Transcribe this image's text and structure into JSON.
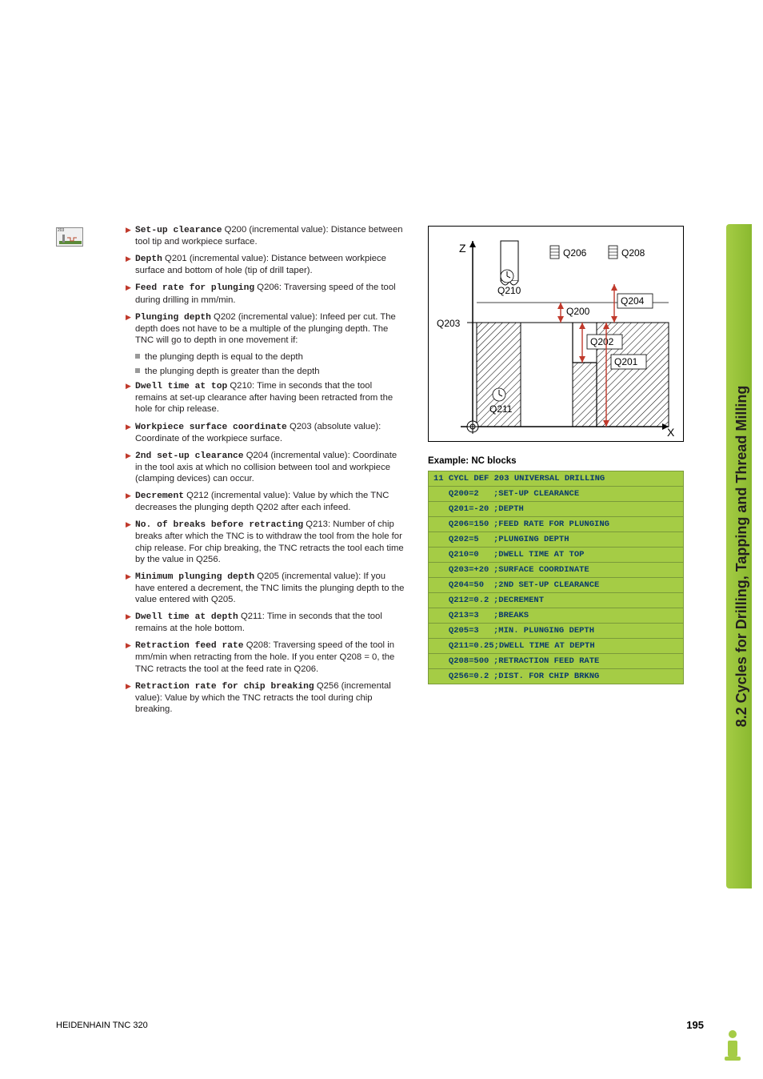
{
  "sideTab": "8.2 Cycles for Drilling, Tapping and Thread Milling",
  "iconNum": "203",
  "params": [
    {
      "label": "Set-up clearance",
      "text": " Q200 (incremental value): Distance between tool tip and workpiece surface."
    },
    {
      "label": "Depth",
      "text": " Q201 (incremental value): Distance between workpiece surface and bottom of hole (tip of drill taper)."
    },
    {
      "label": "Feed rate for plunging",
      "text": " Q206: Traversing speed of the tool during drilling in mm/min."
    },
    {
      "label": "Plunging depth",
      "text": " Q202 (incremental value): Infeed per cut. The depth does not have to be a multiple of the plunging depth. The TNC will go to depth in one movement if:"
    }
  ],
  "subs": [
    "the plunging depth is equal to the depth",
    "the plunging depth is greater than the depth"
  ],
  "params2": [
    {
      "label": "Dwell time at top",
      "text": " Q210: Time in seconds that the tool remains at set-up clearance after having been retracted from the hole for chip release."
    },
    {
      "label": "Workpiece surface coordinate",
      "text": " Q203 (absolute value): Coordinate of the workpiece surface."
    },
    {
      "label": "2nd set-up clearance",
      "text": " Q204 (incremental value): Coordinate in the tool axis at which no collision between tool and workpiece (clamping devices) can occur."
    },
    {
      "label": "Decrement",
      "text": " Q212 (incremental value): Value by which the TNC decreases the plunging depth Q202 after each infeed."
    },
    {
      "label": "No. of breaks before retracting",
      "text": " Q213: Number of chip breaks after which the TNC is to withdraw the tool from the hole for chip release. For chip breaking, the TNC retracts the tool each time by the value in Q256."
    },
    {
      "label": "Minimum plunging depth",
      "text": " Q205 (incremental value): If you have entered a decrement, the TNC limits the plunging depth to the value entered with Q205."
    },
    {
      "label": "Dwell time at depth",
      "text": " Q211: Time in seconds that the tool remains at the hole bottom."
    },
    {
      "label": "Retraction feed rate",
      "text": " Q208: Traversing speed of the tool in mm/min when retracting from the hole. If you enter Q208 = 0, the TNC retracts the tool at the feed rate in Q206."
    },
    {
      "label": "Retraction rate for chip breaking",
      "text": " Q256 (incremental value): Value by which the TNC retracts the tool during chip breaking."
    }
  ],
  "diagram": {
    "zLabel": "Z",
    "xLabel": "X",
    "labels": {
      "q206": "Q206",
      "q208": "Q208",
      "q210": "Q210",
      "q200": "Q200",
      "q204": "Q204",
      "q203": "Q203",
      "q202": "Q202",
      "q201": "Q201",
      "q211": "Q211"
    }
  },
  "exampleTitle": "Example: NC blocks",
  "nc": [
    {
      "header": true,
      "text": "11 CYCL DEF 203 UNIVERSAL DRILLING"
    },
    {
      "code": "Q200=2",
      "comment": ";SET-UP CLEARANCE"
    },
    {
      "code": "Q201=-20",
      "comment": ";DEPTH"
    },
    {
      "code": "Q206=150",
      "comment": ";FEED RATE FOR PLUNGING"
    },
    {
      "code": "Q202=5",
      "comment": ";PLUNGING DEPTH"
    },
    {
      "code": "Q210=0",
      "comment": ";DWELL TIME AT TOP"
    },
    {
      "code": "Q203=+20",
      "comment": ";SURFACE COORDINATE"
    },
    {
      "code": "Q204=50",
      "comment": ";2ND SET-UP CLEARANCE"
    },
    {
      "code": "Q212=0.2",
      "comment": ";DECREMENT"
    },
    {
      "code": "Q213=3",
      "comment": ";BREAKS"
    },
    {
      "code": "Q205=3",
      "comment": ";MIN. PLUNGING DEPTH"
    },
    {
      "code": "Q211=0.25",
      "comment": ";DWELL TIME AT DEPTH"
    },
    {
      "code": "Q208=500",
      "comment": ";RETRACTION FEED RATE"
    },
    {
      "code": "Q256=0.2",
      "comment": ";DIST. FOR CHIP BRKNG"
    }
  ],
  "footer": {
    "left": "HEIDENHAIN TNC 320",
    "page": "195"
  }
}
